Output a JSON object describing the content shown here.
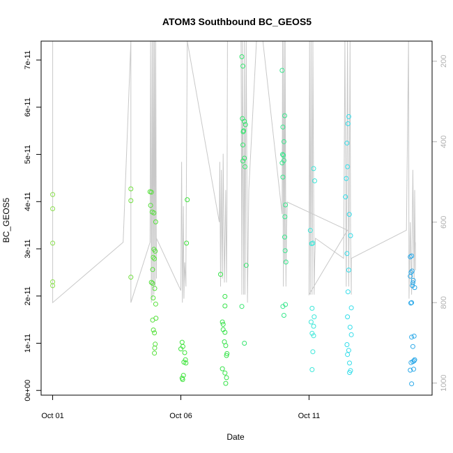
{
  "chart_data": {
    "type": "scatter",
    "title": "ATOM3 Southbound BC_GEOS5",
    "xlabel": "Date",
    "ylabel": "BC_GEOS5",
    "x_tick_labels": [
      "Oct 01",
      "Oct 06",
      "Oct 11"
    ],
    "x_tick_values": [
      1,
      6,
      11
    ],
    "xlim": [
      0.55,
      15.8
    ],
    "ylim": [
      -1e-12,
      7.4e-11
    ],
    "y_tick_labels": [
      "0e+00",
      "1e-11",
      "2e-11",
      "3e-11",
      "4e-11",
      "5e-11",
      "6e-11",
      "7e-11"
    ],
    "y_tick_values": [
      0,
      1e-11,
      2e-11,
      3e-11,
      4e-11,
      5e-11,
      6e-11,
      7e-11
    ],
    "y2_ticks": [
      200,
      400,
      600,
      800,
      1000
    ],
    "y2_lim_top": 150,
    "y2_lim_bottom": 1030,
    "y2_reversed": true,
    "grid": false,
    "colors": {
      "pressure_line": "#c8c8c8",
      "axis_right": "#b0b0b0"
    },
    "points": [
      {
        "x": 1.0,
        "y": 4.15e-11,
        "c": "#8be04e"
      },
      {
        "x": 1.0,
        "y": 3.85e-11,
        "c": "#8be04e"
      },
      {
        "x": 1.0,
        "y": 3.12e-11,
        "c": "#8be04e"
      },
      {
        "x": 1.0,
        "y": 2.3e-11,
        "c": "#8be04e"
      },
      {
        "x": 1.0,
        "y": 2.22e-11,
        "c": "#8be04e"
      },
      {
        "x": 4.05,
        "y": 4.27e-11,
        "c": "#6edf3b"
      },
      {
        "x": 4.05,
        "y": 4.02e-11,
        "c": "#6edf3b"
      },
      {
        "x": 4.05,
        "y": 2.4e-11,
        "c": "#6edf3b"
      },
      {
        "x": 4.8,
        "y": 4.21e-11,
        "c": "#55e03a"
      },
      {
        "x": 4.85,
        "y": 4.2e-11,
        "c": "#55e03a"
      },
      {
        "x": 4.82,
        "y": 3.92e-11,
        "c": "#55e03a"
      },
      {
        "x": 4.88,
        "y": 3.78e-11,
        "c": "#55e03a"
      },
      {
        "x": 4.95,
        "y": 3.76e-11,
        "c": "#55e03a"
      },
      {
        "x": 5.02,
        "y": 3.57e-11,
        "c": "#55e03a"
      },
      {
        "x": 4.95,
        "y": 2.99e-11,
        "c": "#55e03a"
      },
      {
        "x": 5.0,
        "y": 2.95e-11,
        "c": "#55e03a"
      },
      {
        "x": 4.92,
        "y": 2.82e-11,
        "c": "#55e03a"
      },
      {
        "x": 4.97,
        "y": 2.79e-11,
        "c": "#55e03a"
      },
      {
        "x": 4.9,
        "y": 2.56e-11,
        "c": "#55e03a"
      },
      {
        "x": 4.85,
        "y": 2.29e-11,
        "c": "#55e03a"
      },
      {
        "x": 4.9,
        "y": 2.27e-11,
        "c": "#55e03a"
      },
      {
        "x": 4.98,
        "y": 2.16e-11,
        "c": "#55e03a"
      },
      {
        "x": 4.92,
        "y": 1.96e-11,
        "c": "#55e03a"
      },
      {
        "x": 5.02,
        "y": 1.83e-11,
        "c": "#55e03a"
      },
      {
        "x": 5.03,
        "y": 1.53e-11,
        "c": "#55e03a"
      },
      {
        "x": 4.9,
        "y": 1.49e-11,
        "c": "#55e03a"
      },
      {
        "x": 4.93,
        "y": 1.28e-11,
        "c": "#55e03a"
      },
      {
        "x": 4.97,
        "y": 1.22e-11,
        "c": "#55e03a"
      },
      {
        "x": 5.0,
        "y": 9.8e-12,
        "c": "#55e03a"
      },
      {
        "x": 4.98,
        "y": 9e-12,
        "c": "#55e03a"
      },
      {
        "x": 4.97,
        "y": 7.9e-12,
        "c": "#55e03a"
      },
      {
        "x": 6.25,
        "y": 4.04e-11,
        "c": "#3ee33b"
      },
      {
        "x": 6.22,
        "y": 3.12e-11,
        "c": "#3ee33b"
      },
      {
        "x": 6.05,
        "y": 1.02e-11,
        "c": "#3ee33b"
      },
      {
        "x": 6.08,
        "y": 9.3e-12,
        "c": "#3ee33b"
      },
      {
        "x": 6.0,
        "y": 8.8e-12,
        "c": "#3ee33b"
      },
      {
        "x": 6.15,
        "y": 8e-12,
        "c": "#3ee33b"
      },
      {
        "x": 6.18,
        "y": 6.5e-12,
        "c": "#3ee33b"
      },
      {
        "x": 6.12,
        "y": 6e-12,
        "c": "#3ee33b"
      },
      {
        "x": 6.2,
        "y": 5.8e-12,
        "c": "#3ee33b"
      },
      {
        "x": 6.1,
        "y": 3.2e-12,
        "c": "#3ee33b"
      },
      {
        "x": 6.05,
        "y": 2.6e-12,
        "c": "#3ee33b"
      },
      {
        "x": 6.07,
        "y": 2.3e-12,
        "c": "#3ee33b"
      },
      {
        "x": 7.55,
        "y": 2.46e-11,
        "c": "#37e34a"
      },
      {
        "x": 7.72,
        "y": 1.99e-11,
        "c": "#37e34a"
      },
      {
        "x": 7.72,
        "y": 1.79e-11,
        "c": "#37e34a"
      },
      {
        "x": 7.62,
        "y": 1.45e-11,
        "c": "#37e34a"
      },
      {
        "x": 7.65,
        "y": 1.4e-11,
        "c": "#37e34a"
      },
      {
        "x": 7.65,
        "y": 1.29e-11,
        "c": "#37e34a"
      },
      {
        "x": 7.72,
        "y": 1.23e-11,
        "c": "#37e34a"
      },
      {
        "x": 7.7,
        "y": 1.03e-11,
        "c": "#37e34a"
      },
      {
        "x": 7.75,
        "y": 9.5e-12,
        "c": "#37e34a"
      },
      {
        "x": 7.8,
        "y": 7.8e-12,
        "c": "#37e34a"
      },
      {
        "x": 7.78,
        "y": 7.4e-12,
        "c": "#37e34a"
      },
      {
        "x": 7.62,
        "y": 4.6e-12,
        "c": "#37e34a"
      },
      {
        "x": 7.72,
        "y": 3.7e-12,
        "c": "#37e34a"
      },
      {
        "x": 7.78,
        "y": 2.7e-12,
        "c": "#37e34a"
      },
      {
        "x": 7.75,
        "y": 1.5e-12,
        "c": "#37e34a"
      },
      {
        "x": 8.38,
        "y": 7.07e-11,
        "c": "#36e56f"
      },
      {
        "x": 8.42,
        "y": 6.87e-11,
        "c": "#36e56f"
      },
      {
        "x": 8.4,
        "y": 5.76e-11,
        "c": "#36e56f"
      },
      {
        "x": 8.48,
        "y": 5.7e-11,
        "c": "#36e56f"
      },
      {
        "x": 8.52,
        "y": 5.63e-11,
        "c": "#36e56f"
      },
      {
        "x": 8.45,
        "y": 5.5e-11,
        "c": "#36e56f"
      },
      {
        "x": 8.43,
        "y": 5.48e-11,
        "c": "#36e56f"
      },
      {
        "x": 8.42,
        "y": 5.2e-11,
        "c": "#36e56f"
      },
      {
        "x": 8.48,
        "y": 4.92e-11,
        "c": "#36e56f"
      },
      {
        "x": 8.42,
        "y": 4.86e-11,
        "c": "#36e56f"
      },
      {
        "x": 8.5,
        "y": 4.74e-11,
        "c": "#36e56f"
      },
      {
        "x": 8.55,
        "y": 2.65e-11,
        "c": "#36e56f"
      },
      {
        "x": 8.38,
        "y": 1.78e-11,
        "c": "#36e56f"
      },
      {
        "x": 8.48,
        "y": 1e-11,
        "c": "#36e56f"
      },
      {
        "x": 9.95,
        "y": 6.78e-11,
        "c": "#38e68d"
      },
      {
        "x": 10.05,
        "y": 5.82e-11,
        "c": "#38e68d"
      },
      {
        "x": 9.98,
        "y": 5.58e-11,
        "c": "#38e68d"
      },
      {
        "x": 10.02,
        "y": 5.27e-11,
        "c": "#38e68d"
      },
      {
        "x": 9.97,
        "y": 5e-11,
        "c": "#38e68d"
      },
      {
        "x": 10.0,
        "y": 4.98e-11,
        "c": "#38e68d"
      },
      {
        "x": 10.02,
        "y": 4.87e-11,
        "c": "#38e68d"
      },
      {
        "x": 9.95,
        "y": 4.82e-11,
        "c": "#38e68d"
      },
      {
        "x": 9.98,
        "y": 4.52e-11,
        "c": "#38e68d"
      },
      {
        "x": 10.08,
        "y": 3.93e-11,
        "c": "#38e68d"
      },
      {
        "x": 10.06,
        "y": 3.68e-11,
        "c": "#38e68d"
      },
      {
        "x": 10.05,
        "y": 3.25e-11,
        "c": "#38e68d"
      },
      {
        "x": 10.07,
        "y": 2.96e-11,
        "c": "#38e68d"
      },
      {
        "x": 10.1,
        "y": 2.72e-11,
        "c": "#38e68d"
      },
      {
        "x": 10.08,
        "y": 1.82e-11,
        "c": "#38e68d"
      },
      {
        "x": 9.98,
        "y": 1.78e-11,
        "c": "#38e68d"
      },
      {
        "x": 10.02,
        "y": 1.59e-11,
        "c": "#38e68d"
      },
      {
        "x": 11.18,
        "y": 4.7e-11,
        "c": "#3be7d9"
      },
      {
        "x": 11.22,
        "y": 4.44e-11,
        "c": "#3be7d9"
      },
      {
        "x": 11.05,
        "y": 3.39e-11,
        "c": "#3be7d9"
      },
      {
        "x": 11.15,
        "y": 3.12e-11,
        "c": "#3be7d9"
      },
      {
        "x": 11.1,
        "y": 3.11e-11,
        "c": "#3be7d9"
      },
      {
        "x": 11.12,
        "y": 1.74e-11,
        "c": "#3be7d9"
      },
      {
        "x": 11.2,
        "y": 1.56e-11,
        "c": "#3be7d9"
      },
      {
        "x": 11.08,
        "y": 1.45e-11,
        "c": "#3be7d9"
      },
      {
        "x": 11.18,
        "y": 1.36e-11,
        "c": "#3be7d9"
      },
      {
        "x": 11.12,
        "y": 1.21e-11,
        "c": "#3be7d9"
      },
      {
        "x": 11.18,
        "y": 1.16e-11,
        "c": "#3be7d9"
      },
      {
        "x": 11.15,
        "y": 8.2e-12,
        "c": "#3be7d9"
      },
      {
        "x": 11.12,
        "y": 4.4e-12,
        "c": "#3be7d9"
      },
      {
        "x": 12.55,
        "y": 5.8e-11,
        "c": "#33ddea"
      },
      {
        "x": 12.52,
        "y": 5.65e-11,
        "c": "#33ddea"
      },
      {
        "x": 12.48,
        "y": 5.24e-11,
        "c": "#33ddea"
      },
      {
        "x": 12.5,
        "y": 4.74e-11,
        "c": "#33ddea"
      },
      {
        "x": 12.45,
        "y": 4.49e-11,
        "c": "#33ddea"
      },
      {
        "x": 12.42,
        "y": 4.1e-11,
        "c": "#33ddea"
      },
      {
        "x": 12.57,
        "y": 3.73e-11,
        "c": "#33ddea"
      },
      {
        "x": 12.62,
        "y": 3.28e-11,
        "c": "#33ddea"
      },
      {
        "x": 12.48,
        "y": 2.9e-11,
        "c": "#33ddea"
      },
      {
        "x": 12.55,
        "y": 2.55e-11,
        "c": "#33ddea"
      },
      {
        "x": 12.52,
        "y": 2.09e-11,
        "c": "#33ddea"
      },
      {
        "x": 12.65,
        "y": 1.75e-11,
        "c": "#33ddea"
      },
      {
        "x": 12.5,
        "y": 1.56e-11,
        "c": "#33ddea"
      },
      {
        "x": 12.6,
        "y": 1.34e-11,
        "c": "#33ddea"
      },
      {
        "x": 12.65,
        "y": 1.18e-11,
        "c": "#33ddea"
      },
      {
        "x": 12.48,
        "y": 9.7e-12,
        "c": "#33ddea"
      },
      {
        "x": 12.55,
        "y": 8.5e-12,
        "c": "#33ddea"
      },
      {
        "x": 12.5,
        "y": 7.6e-12,
        "c": "#33ddea"
      },
      {
        "x": 12.58,
        "y": 5.8e-12,
        "c": "#33ddea"
      },
      {
        "x": 12.62,
        "y": 4.2e-12,
        "c": "#33ddea"
      },
      {
        "x": 12.58,
        "y": 3.8e-12,
        "c": "#33ddea"
      },
      {
        "x": 15.0,
        "y": 2.85e-11,
        "c": "#2aa8e8"
      },
      {
        "x": 14.95,
        "y": 2.83e-11,
        "c": "#2aa8e8"
      },
      {
        "x": 15.02,
        "y": 2.53e-11,
        "c": "#2aa8e8"
      },
      {
        "x": 14.98,
        "y": 2.5e-11,
        "c": "#2aa8e8"
      },
      {
        "x": 14.95,
        "y": 2.42e-11,
        "c": "#2aa8e8"
      },
      {
        "x": 15.07,
        "y": 2.33e-11,
        "c": "#2aa8e8"
      },
      {
        "x": 15.05,
        "y": 2.28e-11,
        "c": "#2aa8e8"
      },
      {
        "x": 15.03,
        "y": 2.22e-11,
        "c": "#2aa8e8"
      },
      {
        "x": 15.12,
        "y": 2.18e-11,
        "c": "#2aa8e8"
      },
      {
        "x": 15.0,
        "y": 1.86e-11,
        "c": "#2aa8e8"
      },
      {
        "x": 14.97,
        "y": 1.85e-11,
        "c": "#2aa8e8"
      },
      {
        "x": 15.1,
        "y": 1.15e-11,
        "c": "#2aa8e8"
      },
      {
        "x": 15.0,
        "y": 1.13e-11,
        "c": "#2aa8e8"
      },
      {
        "x": 15.05,
        "y": 9.3e-12,
        "c": "#2aa8e8"
      },
      {
        "x": 15.12,
        "y": 6.5e-12,
        "c": "#2aa8e8"
      },
      {
        "x": 15.1,
        "y": 6.3e-12,
        "c": "#2aa8e8"
      },
      {
        "x": 15.05,
        "y": 6.1e-12,
        "c": "#2aa8e8"
      },
      {
        "x": 14.98,
        "y": 5.9e-12,
        "c": "#2aa8e8"
      },
      {
        "x": 15.08,
        "y": 4.5e-12,
        "c": "#2aa8e8"
      },
      {
        "x": 14.95,
        "y": 4.3e-12,
        "c": "#2aa8e8"
      },
      {
        "x": 15.0,
        "y": 1.4e-12,
        "c": "#2aa8e8"
      }
    ],
    "pressure_series": [
      [
        1.0,
        150
      ],
      [
        1.0,
        800
      ],
      [
        3.75,
        650
      ],
      [
        4.05,
        150
      ],
      [
        4.05,
        150
      ],
      [
        4.05,
        800
      ],
      [
        4.8,
        650
      ],
      [
        4.82,
        150
      ],
      [
        4.85,
        800
      ],
      [
        4.88,
        150
      ],
      [
        4.9,
        790
      ],
      [
        4.93,
        150
      ],
      [
        4.95,
        780
      ],
      [
        4.97,
        150
      ],
      [
        5.0,
        760
      ],
      [
        5.02,
        150
      ],
      [
        5.05,
        740
      ],
      [
        5.05,
        640
      ],
      [
        6.0,
        770
      ],
      [
        6.03,
        450
      ],
      [
        6.06,
        800
      ],
      [
        6.1,
        560
      ],
      [
        6.12,
        790
      ],
      [
        6.15,
        700
      ],
      [
        6.2,
        760
      ],
      [
        6.2,
        700
      ],
      [
        6.25,
        150
      ],
      [
        7.5,
        600
      ],
      [
        7.52,
        450
      ],
      [
        7.55,
        760
      ],
      [
        7.58,
        470
      ],
      [
        7.62,
        740
      ],
      [
        7.65,
        430
      ],
      [
        7.7,
        750
      ],
      [
        7.75,
        520
      ],
      [
        7.78,
        750
      ],
      [
        7.8,
        590
      ],
      [
        7.82,
        150
      ],
      [
        8.35,
        150
      ],
      [
        8.38,
        780
      ],
      [
        8.4,
        150
      ],
      [
        8.45,
        780
      ],
      [
        8.48,
        150
      ],
      [
        8.5,
        780
      ],
      [
        8.55,
        150
      ],
      [
        8.6,
        800
      ],
      [
        8.65,
        520
      ],
      [
        8.95,
        150
      ],
      [
        9.2,
        150
      ],
      [
        9.95,
        580
      ],
      [
        9.97,
        150
      ],
      [
        10.0,
        760
      ],
      [
        10.02,
        150
      ],
      [
        10.05,
        700
      ],
      [
        10.07,
        150
      ],
      [
        10.1,
        760
      ],
      [
        10.12,
        620
      ],
      [
        10.15,
        550
      ],
      [
        12.5,
        620
      ],
      [
        11.0,
        780
      ],
      [
        11.02,
        150
      ],
      [
        11.05,
        780
      ],
      [
        11.08,
        150
      ],
      [
        11.12,
        780
      ],
      [
        11.15,
        150
      ],
      [
        11.2,
        780
      ],
      [
        11.22,
        700
      ],
      [
        11.25,
        640
      ],
      [
        12.35,
        690
      ],
      [
        12.4,
        150
      ],
      [
        12.45,
        760
      ],
      [
        12.5,
        150
      ],
      [
        12.55,
        760
      ],
      [
        12.6,
        150
      ],
      [
        12.62,
        620
      ],
      [
        12.65,
        780
      ],
      [
        12.65,
        690
      ],
      [
        14.8,
        620
      ],
      [
        14.88,
        150
      ],
      [
        14.9,
        790
      ],
      [
        14.95,
        600
      ],
      [
        15.0,
        780
      ],
      [
        15.05,
        470
      ],
      [
        15.1,
        760
      ],
      [
        15.12,
        520
      ],
      [
        15.15,
        720
      ],
      [
        15.15,
        650
      ]
    ]
  }
}
